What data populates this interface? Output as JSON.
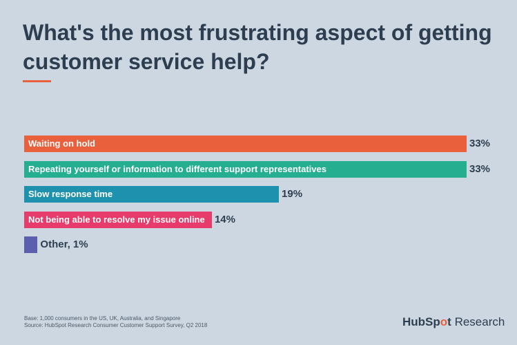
{
  "chart_data": {
    "type": "bar",
    "orientation": "horizontal",
    "title": "What's the most frustrating aspect of getting customer service help?",
    "categories": [
      "Waiting on hold",
      "Repeating yourself or information to different support representatives",
      "Slow response time",
      "Not being able to resolve my issue online",
      "Other"
    ],
    "values": [
      33,
      33,
      19,
      14,
      1
    ],
    "value_labels": [
      "33%",
      "33%",
      "19%",
      "14%",
      "Other, 1%"
    ],
    "colors": [
      "#e8603c",
      "#25ae90",
      "#1d91ad",
      "#e73b6b",
      "#5b5fad"
    ],
    "unit": "%",
    "grid": false,
    "xlim": [
      0,
      33
    ]
  },
  "footnote": {
    "base": "Base: 1,000 consumers in the US, UK, Australia, and Singapore",
    "source": "Source: HubSpot Research Consumer Customer Support Survey, Q2 2018"
  },
  "logo": {
    "brand_a": "HubSp",
    "brand_dot": "o",
    "brand_b": "t",
    "suffix": " Research"
  }
}
